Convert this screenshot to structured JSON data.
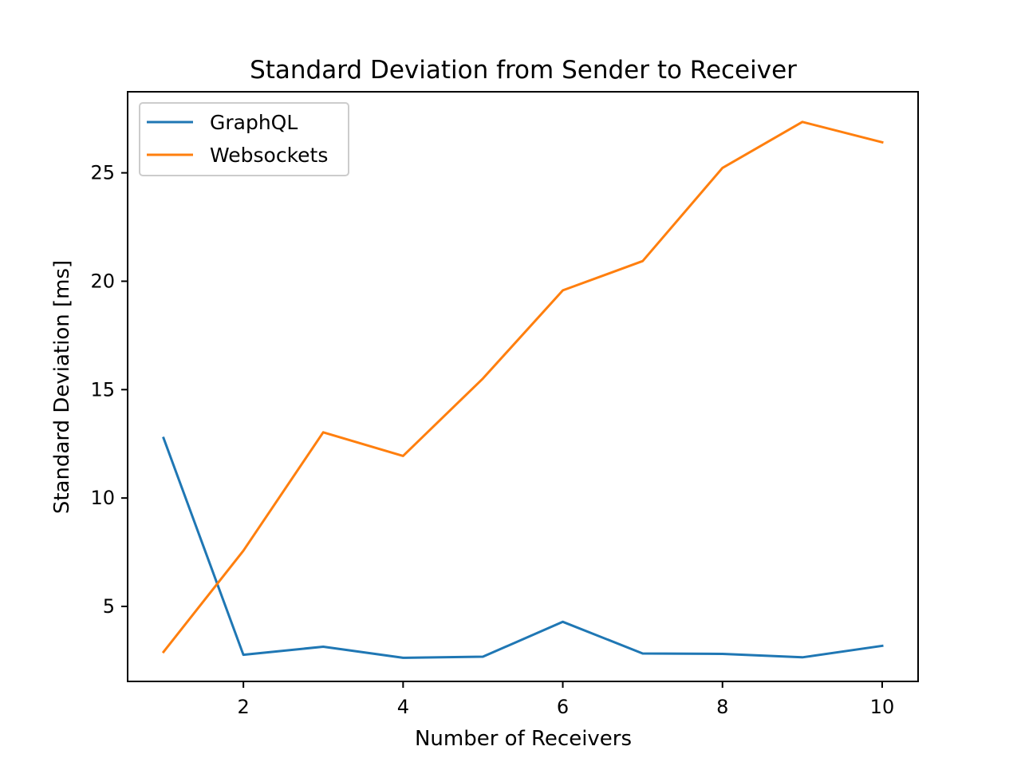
{
  "chart_data": {
    "type": "line",
    "title": "Standard Deviation from Sender to Receiver",
    "xlabel": "Number of Receivers",
    "ylabel": "Standard Deviation [ms]",
    "x": [
      1,
      2,
      3,
      4,
      5,
      6,
      7,
      8,
      9,
      10
    ],
    "xlim": [
      0.55,
      10.45
    ],
    "ylim": [
      1.54,
      28.74
    ],
    "xticks": [
      2,
      4,
      6,
      8,
      10
    ],
    "yticks": [
      5,
      10,
      15,
      20,
      25
    ],
    "grid": false,
    "legend_position": "top-left",
    "series": [
      {
        "name": "GraphQL",
        "color": "#1f77b4",
        "values": [
          12.77,
          2.77,
          3.14,
          2.63,
          2.68,
          4.29,
          2.83,
          2.81,
          2.65,
          3.18
        ]
      },
      {
        "name": "Websockets",
        "color": "#ff7f0e",
        "values": [
          2.9,
          7.57,
          13.03,
          11.94,
          15.51,
          19.58,
          20.93,
          25.23,
          27.35,
          26.41
        ]
      }
    ]
  }
}
